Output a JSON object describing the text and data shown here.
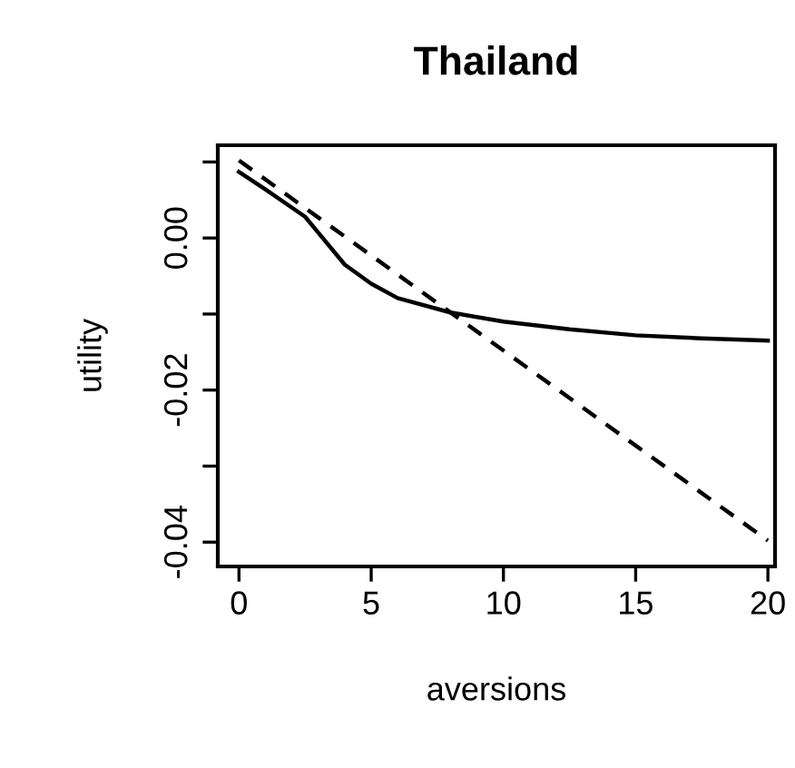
{
  "chart_data": {
    "type": "line",
    "title": "Thailand",
    "xlabel": "aversions",
    "ylabel": "utility",
    "xlim": [
      -0.8,
      20.27
    ],
    "ylim": [
      -0.0432,
      0.0122
    ],
    "xticks": [
      0,
      5,
      10,
      15,
      20
    ],
    "yticks": [
      {
        "value": 0.01,
        "label": null
      },
      {
        "value": 0,
        "label": "0.00"
      },
      {
        "value": -0.01,
        "label": null
      },
      {
        "value": -0.02,
        "label": "-0.02"
      },
      {
        "value": -0.03,
        "label": null
      },
      {
        "value": -0.04,
        "label": "-0.04"
      }
    ],
    "grid": false,
    "legend": false,
    "series": [
      {
        "color": "#000000",
        "line_style": "solid",
        "x": [
          0,
          1,
          2.5,
          4,
          5,
          6,
          8,
          10,
          12.5,
          15,
          17.5,
          20
        ],
        "values": [
          0.0087,
          0.0064,
          0.0028,
          -0.0035,
          -0.006,
          -0.0079,
          -0.0098,
          -0.011,
          -0.012,
          -0.0128,
          -0.0132,
          -0.0135
        ]
      },
      {
        "color": "#000000",
        "line_style": "dashed",
        "x": [
          0,
          20
        ],
        "values": [
          0.0102,
          -0.0398
        ]
      }
    ]
  }
}
